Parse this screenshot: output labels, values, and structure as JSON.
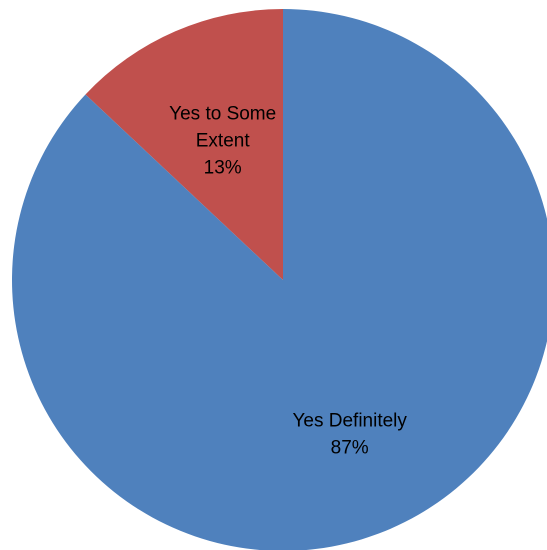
{
  "chart_data": {
    "type": "pie",
    "title": "",
    "slices": [
      {
        "label_lines": [
          "Yes to Some",
          "Extent"
        ],
        "pct_label": "13%",
        "value": 13,
        "color": "#C0504D"
      },
      {
        "label_lines": [
          "Yes Definitely"
        ],
        "pct_label": "87%",
        "value": 87,
        "color": "#4F81BD"
      }
    ],
    "start": "12 o'clock",
    "direction": "counterclockwise",
    "legend": "none",
    "data_labels": "inside slices"
  }
}
